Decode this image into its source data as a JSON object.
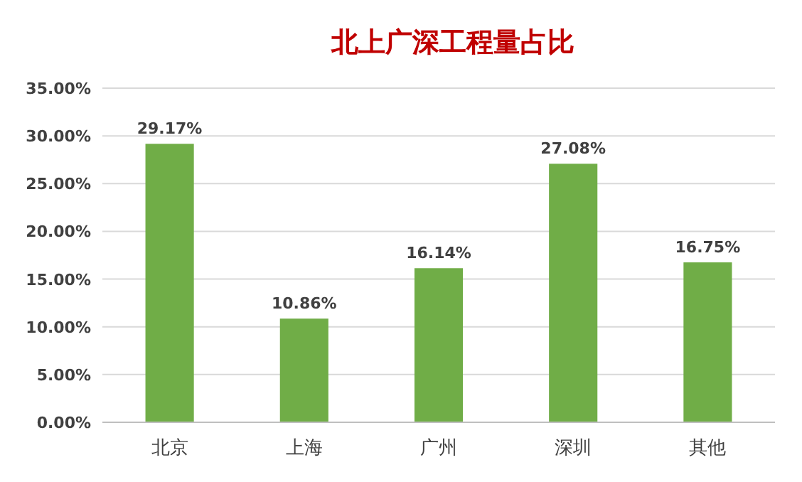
{
  "chart_data": {
    "type": "bar",
    "title": "北上广深工程量占比",
    "categories": [
      "北京",
      "上海",
      "广州",
      "深圳",
      "其他"
    ],
    "values": [
      29.17,
      10.86,
      16.14,
      27.08,
      16.75
    ],
    "value_labels": [
      "29.17%",
      "10.86%",
      "16.14%",
      "27.08%",
      "16.75%"
    ],
    "color": "#70ad47",
    "ylim": [
      0,
      35
    ],
    "yticks": [
      {
        "value": 0,
        "label": "0.00%"
      },
      {
        "value": 5,
        "label": "5.00%"
      },
      {
        "value": 10,
        "label": "10.00%"
      },
      {
        "value": 15,
        "label": "15.00%"
      },
      {
        "value": 20,
        "label": "20.00%"
      },
      {
        "value": 25,
        "label": "25.00%"
      },
      {
        "value": 30,
        "label": "30.00%"
      },
      {
        "value": 35,
        "label": "35.00%"
      }
    ],
    "grid": "y"
  }
}
